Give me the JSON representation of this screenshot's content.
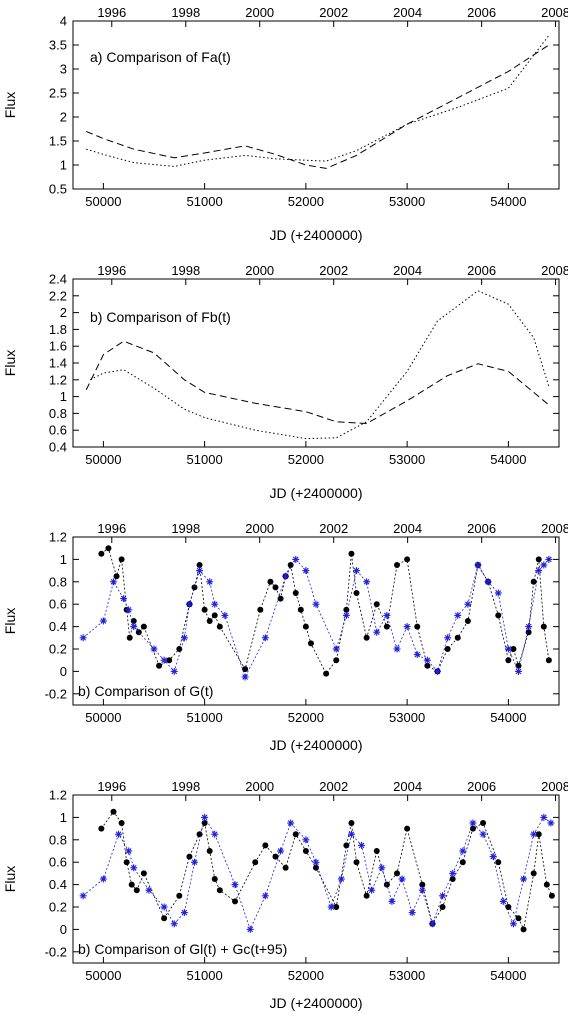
{
  "figure": {
    "top_axis_ticks": [
      "1996",
      "1998",
      "2000",
      "2002",
      "2004",
      "2006",
      "2008"
    ],
    "bottom_axis_ticks": [
      "50000",
      "51000",
      "52000",
      "53000",
      "54000"
    ],
    "xlabel": "JD (+2400000)",
    "ylabel": "Flux"
  },
  "chart_data": [
    {
      "type": "line",
      "annotation": "a) Comparison of Fa(t)",
      "xlim": [
        49700,
        54500
      ],
      "ylim": [
        0.5,
        4.0
      ],
      "yticks": [
        "0.5",
        "1",
        "1.5",
        "2",
        "2.5",
        "3",
        "3.5",
        "4"
      ],
      "grid": false,
      "series": [
        {
          "style": "dashed",
          "color": "#000000",
          "x": [
            49830,
            50000,
            50300,
            50700,
            51000,
            51400,
            51700,
            52000,
            52200,
            52500,
            53000,
            53500,
            54000,
            54400
          ],
          "y": [
            1.7,
            1.55,
            1.33,
            1.15,
            1.25,
            1.4,
            1.22,
            1.0,
            0.93,
            1.2,
            1.85,
            2.4,
            2.95,
            3.5
          ]
        },
        {
          "style": "dotted",
          "color": "#000000",
          "x": [
            49830,
            50000,
            50300,
            50700,
            51000,
            51400,
            51700,
            52000,
            52200,
            52500,
            53000,
            53500,
            54000,
            54400
          ],
          "y": [
            1.33,
            1.22,
            1.05,
            0.97,
            1.1,
            1.2,
            1.13,
            1.1,
            1.08,
            1.3,
            1.85,
            2.2,
            2.6,
            3.7
          ]
        }
      ]
    },
    {
      "type": "line",
      "annotation": "b) Comparison of Fb(t)",
      "xlim": [
        49700,
        54500
      ],
      "ylim": [
        0.4,
        2.4
      ],
      "yticks": [
        "0.4",
        "0.6",
        "0.8",
        "1",
        "1.2",
        "1.4",
        "1.6",
        "1.8",
        "2",
        "2.2",
        "2.4"
      ],
      "grid": false,
      "series": [
        {
          "style": "dashed",
          "color": "#000000",
          "x": [
            49830,
            50000,
            50200,
            50500,
            50800,
            51000,
            51500,
            52000,
            52300,
            52600,
            53000,
            53400,
            53700,
            54000,
            54400
          ],
          "y": [
            1.08,
            1.5,
            1.66,
            1.52,
            1.2,
            1.05,
            0.92,
            0.82,
            0.7,
            0.68,
            0.95,
            1.25,
            1.39,
            1.3,
            0.9
          ]
        },
        {
          "style": "dotted",
          "color": "#000000",
          "x": [
            49870,
            50000,
            50200,
            50500,
            50800,
            51000,
            51500,
            52000,
            52300,
            52600,
            53000,
            53300,
            53700,
            54000,
            54250,
            54400
          ],
          "y": [
            1.2,
            1.28,
            1.32,
            1.1,
            0.85,
            0.75,
            0.6,
            0.5,
            0.51,
            0.7,
            1.3,
            1.9,
            2.26,
            2.1,
            1.7,
            1.12
          ]
        }
      ]
    },
    {
      "type": "scatter",
      "annotation": "b) Comparison of G(t)",
      "xlim": [
        49700,
        54500
      ],
      "ylim": [
        -0.3,
        1.2
      ],
      "yticks": [
        "-0.2",
        "0",
        "0.2",
        "0.4",
        "0.6",
        "0.8",
        "1",
        "1.2"
      ],
      "grid": false,
      "series": [
        {
          "marker": "circle",
          "color": "#000000",
          "x": [
            49980,
            50050,
            50130,
            50180,
            50230,
            50260,
            50300,
            50350,
            50400,
            50550,
            50650,
            50750,
            50850,
            50900,
            50950,
            51000,
            51050,
            51100,
            51150,
            51400,
            51550,
            51650,
            51700,
            51750,
            51800,
            51850,
            51900,
            51950,
            52000,
            52050,
            52200,
            52300,
            52400,
            52450,
            52500,
            52600,
            52700,
            52800,
            52900,
            53000,
            53100,
            53200,
            53300,
            53400,
            53500,
            53600,
            53700,
            53800,
            53900,
            54000,
            54050,
            54100,
            54200,
            54250,
            54300,
            54350,
            54400
          ],
          "y": [
            1.05,
            1.1,
            0.85,
            1.0,
            0.55,
            0.3,
            0.45,
            0.35,
            0.4,
            0.05,
            0.1,
            0.2,
            0.6,
            0.75,
            0.95,
            0.55,
            0.45,
            0.5,
            0.4,
            0.02,
            0.55,
            0.8,
            0.75,
            0.65,
            0.85,
            0.95,
            0.7,
            0.55,
            0.4,
            0.25,
            -0.02,
            0.1,
            0.55,
            1.05,
            0.7,
            0.3,
            0.6,
            0.4,
            0.95,
            1.0,
            0.4,
            0.05,
            0.0,
            0.2,
            0.3,
            0.45,
            0.95,
            0.8,
            0.5,
            0.1,
            0.2,
            0.05,
            0.35,
            0.8,
            1.0,
            0.4,
            0.1
          ]
        },
        {
          "marker": "asterisk",
          "color": "#1f1fd9",
          "x": [
            49800,
            50000,
            50100,
            50200,
            50250,
            50300,
            50500,
            50600,
            50700,
            50800,
            50850,
            50950,
            51050,
            51100,
            51200,
            51400,
            51600,
            51800,
            51900,
            52000,
            52100,
            52300,
            52400,
            52500,
            52600,
            52700,
            52800,
            52900,
            53000,
            53100,
            53200,
            53300,
            53400,
            53500,
            53600,
            53700,
            53800,
            53900,
            54000,
            54100,
            54200,
            54300,
            54350,
            54400
          ],
          "y": [
            0.3,
            0.45,
            0.8,
            0.65,
            0.55,
            0.4,
            0.2,
            0.1,
            0.0,
            0.3,
            0.6,
            0.9,
            0.8,
            0.6,
            0.5,
            -0.05,
            0.3,
            0.85,
            1.0,
            0.9,
            0.6,
            0.2,
            0.5,
            0.9,
            0.8,
            0.35,
            0.5,
            0.2,
            0.4,
            0.15,
            0.1,
            0.0,
            0.3,
            0.5,
            0.6,
            0.95,
            0.8,
            0.7,
            0.2,
            0.0,
            0.4,
            0.9,
            0.95,
            1.0
          ]
        }
      ]
    },
    {
      "type": "scatter",
      "annotation": "b) Comparison of Gl(t) + Gc(t+95)",
      "xlim": [
        49700,
        54500
      ],
      "ylim": [
        -0.3,
        1.2
      ],
      "yticks": [
        "-0.2",
        "0",
        "0.2",
        "0.4",
        "0.6",
        "0.8",
        "1",
        "1.2"
      ],
      "grid": false,
      "series": [
        {
          "marker": "circle",
          "color": "#000000",
          "x": [
            49980,
            50100,
            50180,
            50230,
            50280,
            50330,
            50400,
            50600,
            50750,
            50850,
            50950,
            51000,
            51050,
            51100,
            51150,
            51300,
            51500,
            51600,
            51700,
            51800,
            51900,
            52000,
            52100,
            52300,
            52400,
            52450,
            52500,
            52600,
            52700,
            52800,
            52900,
            53000,
            53150,
            53250,
            53350,
            53450,
            53550,
            53650,
            53750,
            53900,
            54000,
            54100,
            54150,
            54250,
            54300,
            54380,
            54430
          ],
          "y": [
            0.9,
            1.05,
            0.95,
            0.6,
            0.4,
            0.35,
            0.5,
            0.1,
            0.3,
            0.65,
            0.85,
            0.95,
            0.7,
            0.45,
            0.35,
            0.25,
            0.6,
            0.75,
            0.65,
            0.55,
            0.85,
            0.7,
            0.55,
            0.2,
            0.75,
            0.95,
            0.6,
            0.3,
            0.7,
            0.4,
            0.5,
            0.9,
            0.4,
            0.05,
            0.2,
            0.45,
            0.6,
            0.9,
            0.95,
            0.6,
            0.2,
            0.1,
            0.0,
            0.5,
            0.85,
            0.4,
            0.3
          ]
        },
        {
          "marker": "asterisk",
          "color": "#1f1fd9",
          "x": [
            49800,
            50000,
            50150,
            50250,
            50300,
            50450,
            50600,
            50700,
            50800,
            50900,
            51000,
            51100,
            51300,
            51450,
            51600,
            51750,
            51850,
            52000,
            52100,
            52250,
            52350,
            52450,
            52550,
            52650,
            52750,
            52850,
            52950,
            53050,
            53150,
            53250,
            53350,
            53450,
            53550,
            53650,
            53750,
            53850,
            53950,
            54050,
            54150,
            54250,
            54350,
            54420
          ],
          "y": [
            0.3,
            0.45,
            0.85,
            0.7,
            0.55,
            0.35,
            0.2,
            0.05,
            0.15,
            0.6,
            1.0,
            0.85,
            0.4,
            0.0,
            0.3,
            0.7,
            0.95,
            0.8,
            0.6,
            0.2,
            0.45,
            0.85,
            0.75,
            0.35,
            0.55,
            0.25,
            0.45,
            0.15,
            0.35,
            0.05,
            0.3,
            0.5,
            0.7,
            0.95,
            0.85,
            0.65,
            0.25,
            0.05,
            0.45,
            0.85,
            1.0,
            0.95
          ]
        }
      ]
    }
  ]
}
